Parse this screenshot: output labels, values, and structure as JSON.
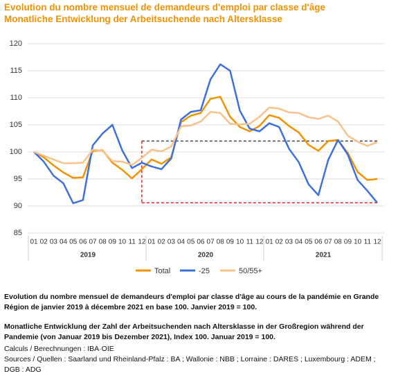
{
  "chart_data": {
    "type": "line",
    "title": "Evolution du nombre mensuel de demandeurs d'emploi par classe d'âge",
    "subtitle": "Monatliche Entwicklung der Arbeitsuchende nach Altersklasse",
    "categories": [
      "01",
      "02",
      "03",
      "04",
      "05",
      "06",
      "07",
      "08",
      "09",
      "10",
      "11",
      "12",
      "01",
      "02",
      "03",
      "04",
      "05",
      "06",
      "07",
      "08",
      "09",
      "10",
      "11",
      "12",
      "01",
      "02",
      "03",
      "04",
      "05",
      "06",
      "07",
      "08",
      "09",
      "10",
      "11",
      "12"
    ],
    "groups": [
      "2019",
      "2020",
      "2021"
    ],
    "series": [
      {
        "name": "Total",
        "color": "#f39200",
        "values": [
          100,
          99,
          97.5,
          96.2,
          95.2,
          95.3,
          100.2,
          100.3,
          98,
          96.7,
          95.1,
          96.8,
          98.6,
          97.8,
          99,
          105.5,
          106.7,
          107.2,
          109.8,
          110.2,
          106.5,
          104.6,
          103.8,
          104.8,
          106.8,
          106.3,
          104.8,
          103.6,
          101.3,
          100.2,
          102,
          102.2,
          99.8,
          96.3,
          94.8,
          95
        ]
      },
      {
        "name": "-25",
        "color": "#3c6fe0",
        "values": [
          100,
          98.2,
          95.6,
          94.2,
          90.5,
          91.1,
          101.2,
          103.4,
          105,
          100.3,
          97,
          98,
          97.3,
          96.8,
          98.8,
          106,
          107.4,
          107.7,
          113.4,
          116.2,
          115,
          107.6,
          104.3,
          103.8,
          105.3,
          104.6,
          100.6,
          98.1,
          94,
          92,
          98.5,
          102.2,
          99.5,
          94.8,
          92.8,
          90.6
        ]
      },
      {
        "name": "50/55+",
        "color": "#f7c28c",
        "values": [
          100,
          99.3,
          98.6,
          97.9,
          97.9,
          98,
          100.4,
          100.2,
          98.3,
          98.2,
          97.6,
          98.9,
          100.4,
          100.1,
          101,
          104.7,
          104.9,
          105.6,
          107.4,
          107.2,
          105.2,
          105.1,
          105.2,
          106.5,
          108.2,
          108,
          107.3,
          107.2,
          106.4,
          106.1,
          106.7,
          105.6,
          103,
          101.9,
          101.1,
          101.8
        ]
      }
    ],
    "reference_box": {
      "top": 102,
      "bottom": 90.6,
      "start_index": 11,
      "end_index": 35,
      "top_color": "#444",
      "bottom_color": "#e02020"
    },
    "ylim": [
      85,
      120
    ],
    "yticks": [
      85,
      90,
      95,
      100,
      105,
      110,
      115,
      120
    ],
    "grid": true
  },
  "caption": {
    "fr": "Evolution du nombre mensuel de demandeurs d'emploi par classe d'âge au cours de la pandémie en Grande Région de janvier 2019 à décembre 2021 en base 100. Janvier 2019 = 100.",
    "de": "Monatliche Entwicklung der Zahl der Arbeitsuchenden nach Altersklasse in der Großregion während der Pandemie (von Januar 2019 bis Dezember 2021), Index 100. Januar 2019 = 100.",
    "calc": "Calculs / Berechnungen : IBA·OIE",
    "sources": "Sources / Quellen : Saarland und Rheinland-Pfalz : BA ; Wallonie : NBB ; Lorraine : DARES ; Luxembourg : ADEM ; DGB : ADG"
  }
}
